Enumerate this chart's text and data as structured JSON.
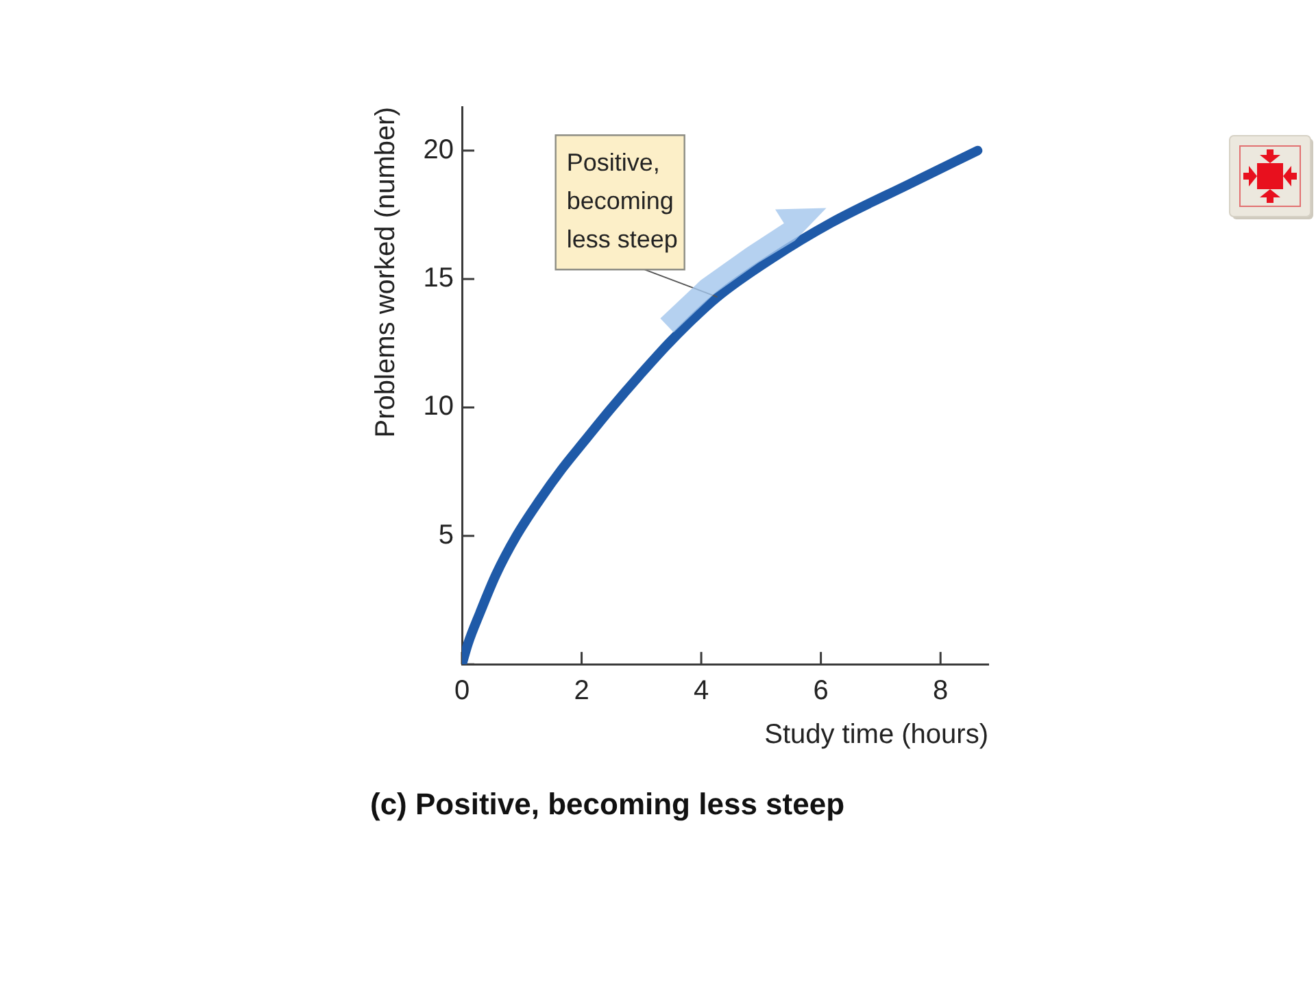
{
  "chart_data": {
    "type": "line",
    "title": "(c) Positive, becoming less steep",
    "xlabel": "Study time (hours)",
    "ylabel": "Problems worked (number)",
    "x": [
      0,
      0.1,
      0.3,
      0.57,
      0.91,
      1.3,
      1.67,
      2.05,
      2.47,
      2.97,
      3.5,
      4.27,
      5.18,
      6.18,
      7.48,
      8.62
    ],
    "values": [
      0,
      0.8,
      2.0,
      3.5,
      5.0,
      6.4,
      7.6,
      8.7,
      9.9,
      11.25,
      12.6,
      14.3,
      15.8,
      17.2,
      18.7,
      20.0
    ],
    "color": "#1f5aa8",
    "xlim": [
      0,
      8.8
    ],
    "ylim": [
      0,
      21.7
    ],
    "xticks": [
      0,
      2,
      4,
      6,
      8
    ],
    "yticks": [
      {
        "value": 0,
        "label": null
      },
      5,
      10,
      15,
      20
    ],
    "grid": false,
    "legend": false,
    "marker": "none",
    "line_style": "solid",
    "annotations": [
      {
        "text": "Positive, becoming less steep",
        "x": 4.27,
        "y": 14.3
      }
    ]
  }
}
